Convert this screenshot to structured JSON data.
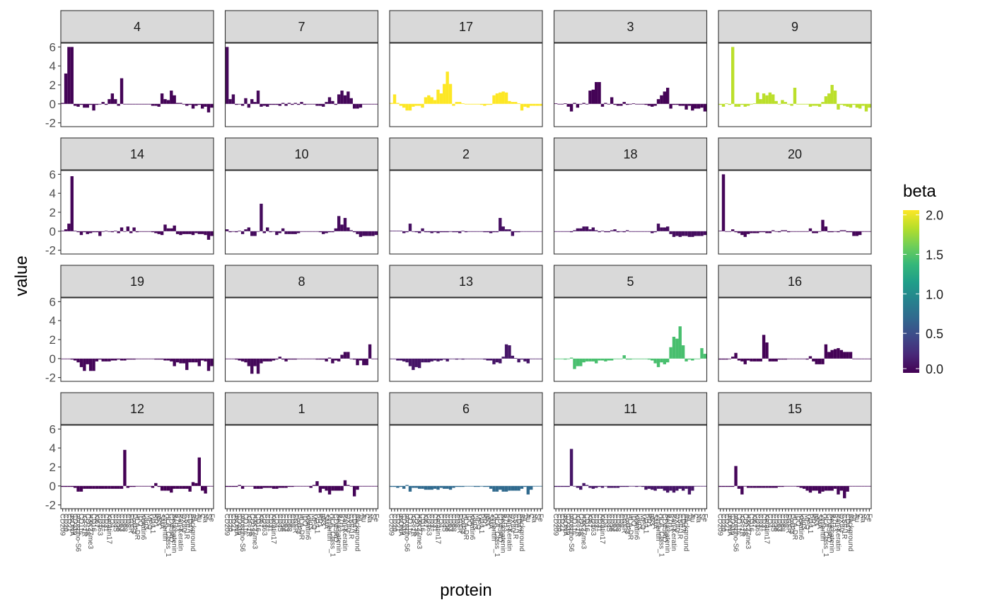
{
  "chart_data": {
    "type": "bar",
    "layout": "facet_wrap",
    "ncol": 5,
    "xlabel": "protein",
    "ylabel": "value",
    "ylim": [
      -2.4,
      6.4
    ],
    "yticks": [
      -2,
      0,
      2,
      4,
      6
    ],
    "ytick_labels": [
      "-2",
      "0",
      "2",
      "4",
      "6"
    ],
    "grid": false,
    "legend": {
      "title": "beta",
      "placement": "right",
      "type": "colorbar",
      "palette": "viridis",
      "range": [
        0.0,
        2.06
      ],
      "ticks": [
        0.0,
        0.5,
        1.0,
        1.5,
        2.0
      ],
      "tick_labels": [
        "0.0",
        "0.5",
        "1.0",
        "1.5",
        "2.0"
      ],
      "stops": [
        "#440154",
        "#482878",
        "#3e4989",
        "#31688e",
        "#26828e",
        "#1f9e89",
        "#35b779",
        "#6ece58",
        "#b5de2b",
        "#fde725"
      ]
    },
    "categories": [
      "CD209",
      "CD20",
      "CD21",
      "dsDNA",
      "CD11b",
      "phospho-S6",
      "CD11c",
      "IGF-1R",
      "CD138",
      "H3K27me3",
      "CD16",
      "Ki67",
      "CD163",
      "CD3",
      "CD31",
      "Keratin17",
      "CD4",
      "CD45",
      "CD56",
      "CD63",
      "CD68",
      "CD8",
      "EGFR",
      "FoxP3",
      "HLA-DR",
      "IDO",
      "Keratin6",
      "Lag3",
      "MPO",
      "PD-L1",
      "PD1",
      "p53",
      "SMA",
      "Vimentin",
      "HLA_Class_1",
      "CD45RO",
      "Beta catenin",
      "B7H3",
      "Pan-Keratin",
      "OX40",
      "CSF-1R",
      "CD47",
      "Background",
      "Ta",
      "Au",
      "C",
      "Na",
      "Si",
      "Fe"
    ],
    "panels": [
      {
        "label": "4",
        "beta": 0.02,
        "values": [
          0.1,
          3.2,
          6.0,
          6.0,
          -0.2,
          -0.3,
          -0.1,
          -0.4,
          -0.4,
          -0.1,
          -0.7,
          -0.1,
          0.0,
          0.2,
          -0.1,
          0.5,
          1.1,
          0.5,
          -0.2,
          2.7,
          0.0,
          -0.05,
          0.0,
          0.0,
          0.0,
          0.0,
          0.0,
          0.0,
          0.0,
          -0.2,
          -0.2,
          -0.3,
          1.1,
          0.5,
          0.4,
          1.4,
          0.9,
          0.1,
          0.1,
          0.0,
          -0.2,
          -0.1,
          -0.5,
          -0.2,
          -0.1,
          -0.5,
          -0.3,
          -0.9,
          -0.4
        ]
      },
      {
        "label": "7",
        "beta": 0.04,
        "values": [
          6.0,
          0.5,
          1.0,
          -0.1,
          0.0,
          -0.2,
          0.6,
          -0.4,
          0.5,
          0.2,
          1.4,
          -0.3,
          -0.2,
          -0.3,
          -0.1,
          -0.1,
          -0.1,
          -0.2,
          0.1,
          -0.2,
          0.1,
          -0.1,
          0.1,
          -0.1,
          0.2,
          -0.1,
          0.0,
          0.0,
          0.0,
          -0.2,
          -0.2,
          -0.3,
          0.2,
          0.7,
          0.3,
          -0.1,
          1.0,
          1.4,
          0.9,
          1.3,
          0.6,
          -0.5,
          -0.5,
          -0.4,
          0.0,
          0.0,
          0.0,
          0.0,
          0.0
        ]
      },
      {
        "label": "17",
        "beta": 2.06,
        "values": [
          0.1,
          1.0,
          0.1,
          -0.2,
          -0.4,
          -0.7,
          -0.7,
          -0.3,
          -0.2,
          -0.2,
          -0.4,
          0.7,
          0.9,
          0.7,
          0.4,
          1.5,
          1.1,
          2.1,
          3.4,
          2.1,
          -0.2,
          0.2,
          0.2,
          0.05,
          0.0,
          0.0,
          0.0,
          0.0,
          0.0,
          -0.1,
          -0.2,
          -0.1,
          -0.1,
          0.9,
          1.1,
          1.2,
          1.3,
          1.2,
          0.3,
          0.2,
          0.2,
          0.05,
          -0.7,
          -0.3,
          -0.4,
          -0.2,
          -0.2,
          -0.2,
          -0.2
        ]
      },
      {
        "label": "3",
        "beta": 0.01,
        "values": [
          0.05,
          -0.05,
          -0.05,
          0.05,
          -0.3,
          -0.8,
          0.1,
          -0.4,
          0.0,
          0.1,
          0.0,
          1.4,
          1.5,
          2.3,
          2.3,
          -0.3,
          0.1,
          0.0,
          0.7,
          -0.1,
          -0.2,
          -0.2,
          0.2,
          -0.1,
          0.0,
          0.05,
          0.0,
          0.0,
          0.0,
          -0.1,
          -0.2,
          -0.3,
          -0.2,
          0.5,
          0.9,
          1.3,
          1.7,
          -0.5,
          -0.1,
          -0.1,
          -0.2,
          -0.2,
          -0.6,
          -0.2,
          -0.7,
          -0.5,
          -0.5,
          -0.4,
          -0.8
        ]
      },
      {
        "label": "9",
        "beta": 1.85,
        "values": [
          -0.1,
          -0.3,
          0.05,
          -0.1,
          6.0,
          -0.3,
          -0.3,
          -0.1,
          -0.3,
          -0.2,
          0.0,
          0.05,
          1.2,
          0.5,
          1.1,
          0.9,
          1.2,
          1.0,
          0.3,
          0.0,
          0.4,
          0.2,
          0.0,
          -0.2,
          1.7,
          0.0,
          0.0,
          0.0,
          0.0,
          -0.3,
          -0.2,
          -0.2,
          -0.3,
          0.2,
          0.8,
          1.1,
          2.0,
          1.4,
          -0.6,
          -0.1,
          -0.2,
          -0.3,
          -0.4,
          -0.1,
          -0.4,
          -0.5,
          -0.2,
          -0.8,
          -0.4
        ]
      },
      {
        "label": "14",
        "beta": 0.03,
        "values": [
          0.05,
          0.2,
          0.8,
          5.8,
          0.05,
          -0.1,
          -0.4,
          -0.1,
          -0.3,
          -0.2,
          -0.1,
          -0.1,
          -0.5,
          0.0,
          0.05,
          0.0,
          -0.1,
          0.05,
          -0.2,
          0.4,
          0.0,
          0.5,
          -0.2,
          0.4,
          -0.1,
          0.0,
          0.0,
          0.0,
          0.0,
          -0.1,
          -0.2,
          -0.3,
          -0.4,
          0.7,
          0.3,
          0.3,
          0.6,
          -0.3,
          -0.4,
          -0.3,
          -0.3,
          -0.3,
          -0.4,
          -0.2,
          -0.3,
          -0.3,
          -0.4,
          -0.9,
          -0.5
        ]
      },
      {
        "label": "10",
        "beta": 0.06,
        "values": [
          0.2,
          -0.1,
          0.0,
          -0.1,
          0.05,
          -0.3,
          0.2,
          0.4,
          -0.5,
          -0.5,
          0.0,
          2.9,
          -0.2,
          0.4,
          -0.1,
          0.0,
          -0.4,
          -0.2,
          0.3,
          -0.3,
          -0.3,
          -0.3,
          -0.3,
          -0.2,
          0.0,
          -0.05,
          0.0,
          0.0,
          0.0,
          -0.05,
          -0.1,
          -0.3,
          -0.2,
          -0.1,
          -0.1,
          0.3,
          1.6,
          0.7,
          1.4,
          0.4,
          0.1,
          -0.1,
          -0.3,
          -0.6,
          -0.5,
          -0.5,
          -0.5,
          -0.5,
          -0.4
        ]
      },
      {
        "label": "2",
        "beta": 0.09,
        "values": [
          0.05,
          0.05,
          0.05,
          0.05,
          -0.2,
          -0.1,
          0.8,
          0.0,
          -0.1,
          -0.2,
          0.3,
          -0.1,
          -0.1,
          -0.2,
          -0.1,
          -0.2,
          -0.1,
          -0.1,
          -0.1,
          0.0,
          -0.1,
          -0.1,
          -0.2,
          0.05,
          -0.1,
          0.0,
          0.0,
          0.0,
          0.0,
          0.0,
          -0.1,
          -0.1,
          -0.2,
          -0.1,
          -0.1,
          1.4,
          0.5,
          0.2,
          0.2,
          -0.5,
          -0.1,
          -0.1,
          0.0,
          0.0,
          0.0,
          0.0,
          0.0,
          0.0,
          0.0
        ]
      },
      {
        "label": "18",
        "beta": 0.07,
        "values": [
          0.0,
          0.0,
          0.0,
          -0.05,
          -0.05,
          -0.1,
          0.1,
          0.3,
          0.3,
          0.5,
          0.5,
          0.2,
          0.4,
          0.1,
          -0.1,
          0.05,
          -0.1,
          -0.1,
          0.1,
          0.2,
          -0.1,
          -0.05,
          -0.1,
          0.1,
          0.0,
          0.0,
          0.0,
          0.0,
          0.0,
          -0.05,
          -0.05,
          -0.2,
          -0.1,
          0.8,
          0.4,
          0.4,
          0.5,
          -0.3,
          -0.6,
          -0.5,
          -0.6,
          -0.5,
          -0.5,
          -0.6,
          -0.6,
          -0.5,
          -0.5,
          -0.5,
          -0.4
        ]
      },
      {
        "label": "20",
        "beta": 0.03,
        "values": [
          0.05,
          6.0,
          0.0,
          -0.05,
          0.2,
          -0.1,
          -0.2,
          -0.4,
          -0.6,
          -0.3,
          -0.2,
          -0.2,
          -0.2,
          -0.1,
          -0.1,
          -0.2,
          -0.2,
          0.1,
          0.0,
          -0.1,
          0.1,
          0.1,
          -0.1,
          0.0,
          0.0,
          0.0,
          0.0,
          0.0,
          0.0,
          0.3,
          -0.2,
          -0.2,
          0.0,
          1.2,
          0.5,
          -0.1,
          -0.1,
          0.0,
          -0.1,
          0.1,
          0.1,
          -0.1,
          -0.1,
          -0.5,
          -0.5,
          -0.4,
          0.0,
          0.0,
          0.0
        ]
      },
      {
        "label": "19",
        "beta": 0.03,
        "values": [
          0.0,
          -0.05,
          -0.05,
          -0.1,
          -0.2,
          -0.4,
          -0.9,
          -1.3,
          -0.6,
          -1.3,
          -1.3,
          -0.3,
          -0.1,
          -0.3,
          -0.3,
          -0.3,
          -0.2,
          -0.2,
          -0.1,
          -0.2,
          -0.2,
          -0.1,
          -0.1,
          -0.1,
          0.0,
          0.0,
          0.0,
          0.0,
          0.0,
          -0.05,
          -0.1,
          -0.1,
          -0.1,
          -0.2,
          -0.2,
          -0.3,
          -0.8,
          -0.4,
          -0.5,
          -0.5,
          -1.2,
          -0.4,
          -0.4,
          -0.4,
          -0.8,
          -0.2,
          -0.3,
          -1.3,
          -0.8
        ]
      },
      {
        "label": "8",
        "beta": 0.04,
        "values": [
          0.0,
          -0.05,
          -0.05,
          -0.1,
          -0.2,
          -0.3,
          -0.4,
          -0.8,
          -1.6,
          -0.8,
          -1.6,
          -0.5,
          -0.3,
          -0.3,
          -0.3,
          -0.2,
          -0.1,
          0.2,
          -0.1,
          -0.3,
          -0.1,
          -0.1,
          -0.1,
          0.0,
          0.0,
          0.0,
          0.0,
          0.0,
          0.0,
          -0.1,
          -0.1,
          -0.1,
          -0.3,
          0.1,
          -0.5,
          -0.2,
          -0.3,
          0.4,
          0.7,
          0.7,
          0.0,
          -0.1,
          -0.7,
          -0.2,
          -0.7,
          -0.7,
          1.5,
          0.0,
          0.0
        ]
      },
      {
        "label": "13",
        "beta": 0.12,
        "values": [
          0.0,
          0.0,
          -0.2,
          -0.2,
          -0.3,
          -0.4,
          -0.8,
          -1.2,
          -0.9,
          -1.0,
          -0.4,
          -0.4,
          -0.4,
          -0.3,
          -0.2,
          -0.3,
          -0.2,
          -0.1,
          -0.3,
          0.0,
          0.0,
          -0.1,
          0.0,
          -0.1,
          0.0,
          0.0,
          0.0,
          0.0,
          0.0,
          0.0,
          -0.1,
          -0.2,
          -0.2,
          -0.6,
          -0.4,
          -0.5,
          0.2,
          1.5,
          1.4,
          0.3,
          0.05,
          -0.4,
          -0.1,
          -0.3,
          -0.5,
          0.0,
          0.0,
          0.0,
          0.0
        ]
      },
      {
        "label": "5",
        "beta": 1.45,
        "values": [
          0.0,
          -0.05,
          -0.05,
          -0.1,
          -0.05,
          0.1,
          -1.1,
          -0.8,
          -0.8,
          -0.4,
          -0.3,
          -0.3,
          -0.3,
          -0.5,
          -0.2,
          -0.2,
          -0.3,
          -0.2,
          -0.2,
          0.0,
          0.0,
          0.0,
          0.35,
          -0.1,
          -0.1,
          0.0,
          0.0,
          0.0,
          0.0,
          -0.05,
          -0.1,
          -0.2,
          -0.5,
          -0.9,
          -0.4,
          -0.6,
          -0.4,
          1.2,
          2.3,
          2.1,
          3.4,
          1.4,
          -0.3,
          -0.1,
          -0.2,
          0.0,
          0.0,
          1.1,
          0.5
        ]
      },
      {
        "label": "16",
        "beta": 0.01,
        "values": [
          -0.1,
          -0.1,
          -0.1,
          0.0,
          0.2,
          0.6,
          -0.2,
          -0.3,
          -0.6,
          -0.2,
          -0.3,
          -0.3,
          -0.3,
          -0.3,
          2.5,
          1.7,
          -0.3,
          -0.3,
          -0.3,
          -0.1,
          -0.1,
          -0.1,
          0.0,
          0.0,
          0.0,
          0.0,
          -0.05,
          -0.05,
          -0.1,
          0.25,
          -0.3,
          -0.6,
          -0.6,
          -0.6,
          1.5,
          0.7,
          0.9,
          1.0,
          1.1,
          0.9,
          0.7,
          0.7,
          0.7,
          0.0,
          0.0,
          0.0,
          0.0,
          0.0,
          0.0
        ]
      },
      {
        "label": "12",
        "beta": 0.0,
        "values": [
          -0.1,
          -0.1,
          -0.1,
          -0.1,
          -0.2,
          -0.6,
          -0.6,
          -0.3,
          -0.3,
          -0.3,
          -0.3,
          -0.3,
          -0.3,
          -0.3,
          -0.3,
          -0.3,
          -0.3,
          -0.3,
          -0.3,
          -0.3,
          3.8,
          -0.2,
          -0.1,
          -0.1,
          -0.05,
          0.0,
          0.0,
          -0.05,
          -0.05,
          -0.2,
          0.3,
          -0.1,
          -0.5,
          -0.5,
          -0.5,
          -0.7,
          -0.3,
          -0.3,
          -0.3,
          -0.3,
          -0.3,
          -0.6,
          0.4,
          0.3,
          3.0,
          -0.5,
          -0.8,
          0.0,
          0.0
        ]
      },
      {
        "label": "1",
        "beta": 0.02,
        "values": [
          -0.1,
          -0.1,
          -0.1,
          -0.1,
          0.1,
          -0.3,
          -0.05,
          0.0,
          0.0,
          -0.3,
          -0.3,
          -0.3,
          -0.2,
          -0.2,
          -0.2,
          -0.3,
          -0.3,
          -0.2,
          -0.2,
          -0.2,
          -0.1,
          -0.1,
          -0.05,
          0.0,
          0.0,
          -0.05,
          -0.05,
          -0.2,
          0.1,
          0.5,
          -0.7,
          -0.3,
          -0.5,
          -0.9,
          -0.5,
          -0.5,
          -0.5,
          -0.5,
          0.6,
          0.1,
          0.0,
          -1.1,
          -0.4,
          0.0,
          0.0,
          0.0,
          0.0,
          0.0,
          0.0
        ]
      },
      {
        "label": "6",
        "beta": 0.7,
        "values": [
          -0.1,
          -0.1,
          -0.2,
          -0.1,
          -0.3,
          0.1,
          -0.6,
          -0.2,
          -0.2,
          -0.3,
          -0.3,
          -0.4,
          -0.4,
          -0.4,
          -0.3,
          -0.4,
          -0.2,
          -0.3,
          -0.3,
          -0.4,
          -0.2,
          -0.1,
          -0.1,
          -0.1,
          0.0,
          -0.05,
          0.0,
          -0.1,
          -0.1,
          0.0,
          -0.1,
          -0.1,
          -0.3,
          -0.6,
          -0.6,
          -0.4,
          -0.6,
          -0.6,
          -0.5,
          -0.5,
          -0.5,
          -0.5,
          -0.3,
          -0.1,
          -0.9,
          -0.4,
          0.0,
          0.0,
          0.0
        ]
      },
      {
        "label": "11",
        "beta": 0.12,
        "values": [
          -0.1,
          -0.1,
          -0.1,
          -0.1,
          -0.1,
          3.9,
          0.0,
          -0.2,
          -0.4,
          0.3,
          0.1,
          -0.2,
          -0.3,
          -0.2,
          -0.1,
          -0.2,
          0.0,
          -0.2,
          -0.2,
          -0.2,
          -0.2,
          -0.1,
          -0.1,
          -0.1,
          -0.05,
          0.0,
          -0.1,
          0.0,
          -0.1,
          -0.4,
          -0.3,
          -0.4,
          -0.5,
          -0.3,
          -0.3,
          -0.5,
          -0.7,
          -0.5,
          -0.7,
          -0.5,
          -0.3,
          -0.5,
          -0.3,
          -0.9,
          -0.5,
          0.0,
          0.0,
          0.0,
          0.0
        ]
      },
      {
        "label": "15",
        "beta": 0.03,
        "values": [
          -0.1,
          -0.1,
          -0.1,
          -0.1,
          -0.1,
          2.1,
          -0.3,
          -0.9,
          0.0,
          -0.2,
          -0.2,
          -0.2,
          -0.2,
          -0.2,
          -0.2,
          -0.2,
          -0.2,
          -0.2,
          -0.2,
          -0.1,
          -0.1,
          -0.05,
          0.0,
          -0.05,
          -0.05,
          -0.1,
          -0.2,
          -0.3,
          -0.5,
          -0.7,
          -0.5,
          -0.5,
          -0.8,
          -0.6,
          -0.5,
          -0.5,
          -0.5,
          -0.3,
          -0.9,
          -0.5,
          -1.3,
          -0.6,
          0.0,
          0.0,
          0.0,
          0.0,
          0.0,
          0.0,
          0.0
        ]
      }
    ]
  }
}
